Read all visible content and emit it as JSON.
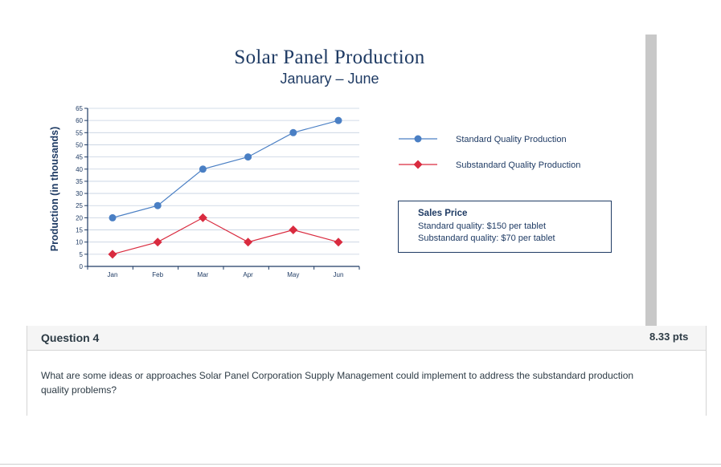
{
  "chart_data": {
    "type": "line",
    "title": "Solar Panel Production",
    "subtitle": "January – June",
    "ylabel": "Production (in thousands)",
    "xlabel": "",
    "categories": [
      "Jan",
      "Feb",
      "Mar",
      "Apr",
      "May",
      "Jun"
    ],
    "ylim": [
      0,
      65
    ],
    "yticks": [
      0,
      5,
      10,
      15,
      20,
      25,
      30,
      35,
      40,
      45,
      50,
      55,
      60,
      65
    ],
    "grid": true,
    "legend_position": "right",
    "series": [
      {
        "name": "Standard Quality Production",
        "values": [
          20,
          25,
          40,
          45,
          55,
          60
        ],
        "color": "#4a7fc4",
        "marker": "circle"
      },
      {
        "name": "Substandard Quality Production",
        "values": [
          5,
          10,
          20,
          10,
          15,
          10
        ],
        "color": "#d92b3f",
        "marker": "diamond"
      }
    ]
  },
  "sales_box": {
    "title": "Sales Price",
    "lines": [
      "Standard quality: $150 per tablet",
      "Substandard quality: $70 per tablet"
    ]
  },
  "question": {
    "title": "Question 4",
    "points": "8.33 pts",
    "text": "What are some ideas or approaches Solar Panel Corporation Supply Management could implement to address the substandard production quality problems?"
  }
}
